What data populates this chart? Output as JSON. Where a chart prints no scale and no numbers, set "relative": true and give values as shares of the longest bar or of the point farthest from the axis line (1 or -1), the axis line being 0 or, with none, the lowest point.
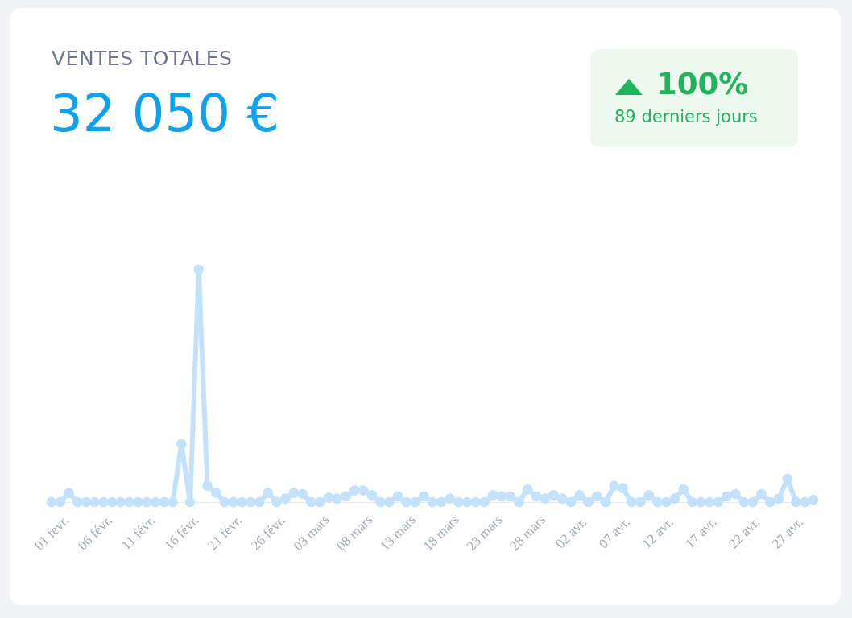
{
  "chart_data": {
    "type": "line",
    "title": "VENTES TOTALES",
    "subtitle": "32 050 €",
    "annotations": [
      "100%",
      "89 derniers jours"
    ],
    "relative": true,
    "marker": "circle",
    "grid": false,
    "line_style": "solid",
    "x": [
      "--02-01",
      "--02-02",
      "--02-03",
      "--02-04",
      "--02-05",
      "--02-06",
      "--02-07",
      "--02-08",
      "--02-09",
      "--02-10",
      "--02-11",
      "--02-12",
      "--02-13",
      "--02-14",
      "--02-15",
      "--02-16",
      "--02-17",
      "--02-18",
      "--02-19",
      "--02-20",
      "--02-21",
      "--02-22",
      "--02-23",
      "--02-24",
      "--02-25",
      "--02-26",
      "--02-27",
      "--02-28",
      "--03-01",
      "--03-02",
      "--03-03",
      "--03-04",
      "--03-05",
      "--03-06",
      "--03-07",
      "--03-08",
      "--03-09",
      "--03-10",
      "--03-11",
      "--03-12",
      "--03-13",
      "--03-14",
      "--03-15",
      "--03-16",
      "--03-17",
      "--03-18",
      "--03-19",
      "--03-20",
      "--03-21",
      "--03-22",
      "--03-23",
      "--03-24",
      "--03-25",
      "--03-26",
      "--03-27",
      "--03-28",
      "--03-29",
      "--03-30",
      "--03-31",
      "--04-01",
      "--04-02",
      "--04-03",
      "--04-04",
      "--04-05",
      "--04-06",
      "--04-07",
      "--04-08",
      "--04-09",
      "--04-10",
      "--04-11",
      "--04-12",
      "--04-13",
      "--04-14",
      "--04-15",
      "--04-16",
      "--04-17",
      "--04-18",
      "--04-19",
      "--04-20",
      "--04-21",
      "--04-22",
      "--04-23",
      "--04-24",
      "--04-25",
      "--04-26",
      "--04-27",
      "--04-28",
      "--04-29",
      "--04-30"
    ],
    "xlim": [
      "--02-01",
      "--04-30"
    ],
    "xticks": [
      {
        "value": "--02-01",
        "label": "01 févr."
      },
      {
        "value": "--02-06",
        "label": "06 févr."
      },
      {
        "value": "--02-11",
        "label": "11 févr."
      },
      {
        "value": "--02-16",
        "label": "16 févr."
      },
      {
        "value": "--02-21",
        "label": "21 févr."
      },
      {
        "value": "--02-26",
        "label": "26 févr."
      },
      {
        "value": "--03-03",
        "label": "03 mars"
      },
      {
        "value": "--03-08",
        "label": "08 mars"
      },
      {
        "value": "--03-13",
        "label": "13 mars"
      },
      {
        "value": "--03-18",
        "label": "18 mars"
      },
      {
        "value": "--03-23",
        "label": "23 mars"
      },
      {
        "value": "--03-28",
        "label": "28 mars"
      },
      {
        "value": "--04-02",
        "label": "02 avr."
      },
      {
        "value": "--04-07",
        "label": "07 avr."
      },
      {
        "value": "--04-12",
        "label": "12 avr."
      },
      {
        "value": "--04-17",
        "label": "17 avr."
      },
      {
        "value": "--04-22",
        "label": "22 avr."
      },
      {
        "value": "--04-27",
        "label": "27 avr."
      }
    ],
    "series": [
      {
        "color": "#c4e1fb",
        "values": [
          0,
          0,
          0.04,
          0,
          0,
          0,
          0,
          0,
          0,
          0,
          0,
          0,
          0,
          0,
          0,
          0.25,
          0,
          1,
          0.07,
          0.04,
          0,
          0,
          0,
          0,
          0,
          0.04,
          0,
          0.015,
          0.04,
          0.035,
          0,
          0,
          0.02,
          0.015,
          0.025,
          0.05,
          0.05,
          0.03,
          0,
          0,
          0.025,
          0,
          0,
          0.025,
          0,
          0,
          0.015,
          0,
          0,
          0,
          0,
          0.03,
          0.025,
          0.025,
          0,
          0.055,
          0.025,
          0.015,
          0.03,
          0.015,
          0,
          0.03,
          0,
          0.025,
          0,
          0.07,
          0.06,
          0,
          0,
          0.03,
          0,
          0,
          0.015,
          0.055,
          0,
          0,
          0,
          0,
          0.025,
          0.035,
          0,
          0,
          0.035,
          0,
          0.015,
          0.1,
          0,
          0,
          0.01
        ]
      }
    ]
  }
}
